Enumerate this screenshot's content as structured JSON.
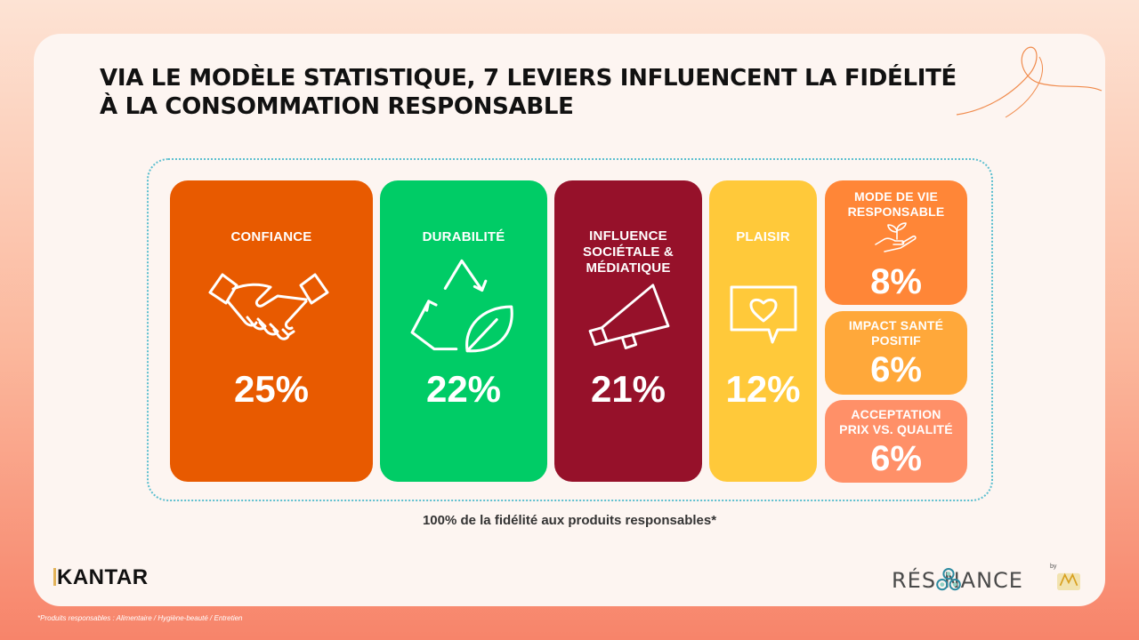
{
  "title_line1": "VIA LE MODÈLE STATISTIQUE, 7 LEVIERS INFLUENCENT LA FIDÉLITÉ",
  "title_line2": "À LA CONSOMMATION RESPONSABLE",
  "levers": [
    {
      "label": "CONFIANCE",
      "value": "25%",
      "color": "#e85a00",
      "icon": "handshake-icon"
    },
    {
      "label": "DURABILITÉ",
      "value": "22%",
      "color": "#00cc66",
      "icon": "recycle-leaf-icon"
    },
    {
      "label_lines": [
        "INFLUENCE",
        "SOCIÉTALE &",
        "MÉDIATIQUE"
      ],
      "value": "21%",
      "color": "#96112a",
      "icon": "megaphone-icon"
    },
    {
      "label": "PLAISIR",
      "value": "12%",
      "color": "#ffc93a",
      "icon": "heart-bubble-icon"
    },
    {
      "label_lines": [
        "MODE DE VIE",
        "RESPONSABLE"
      ],
      "value": "8%",
      "color": "#ff8637",
      "icon": "hand-plant-icon"
    },
    {
      "label_lines": [
        "IMPACT SANTÉ",
        "POSITIF"
      ],
      "value": "6%",
      "color": "#ffa83a"
    },
    {
      "label_lines": [
        "ACCEPTATION",
        "PRIX VS. QUALITÉ"
      ],
      "value": "6%",
      "color": "#ff9068"
    }
  ],
  "caption": "100% de la fidélité aux produits responsables*",
  "brand_left": "KANTAR",
  "brand_right": "RÉS NANCE",
  "brand_right_by": "by",
  "footnote": "*Produits responsables : Alimentaire / Hygiène-beauté / Entretien"
}
